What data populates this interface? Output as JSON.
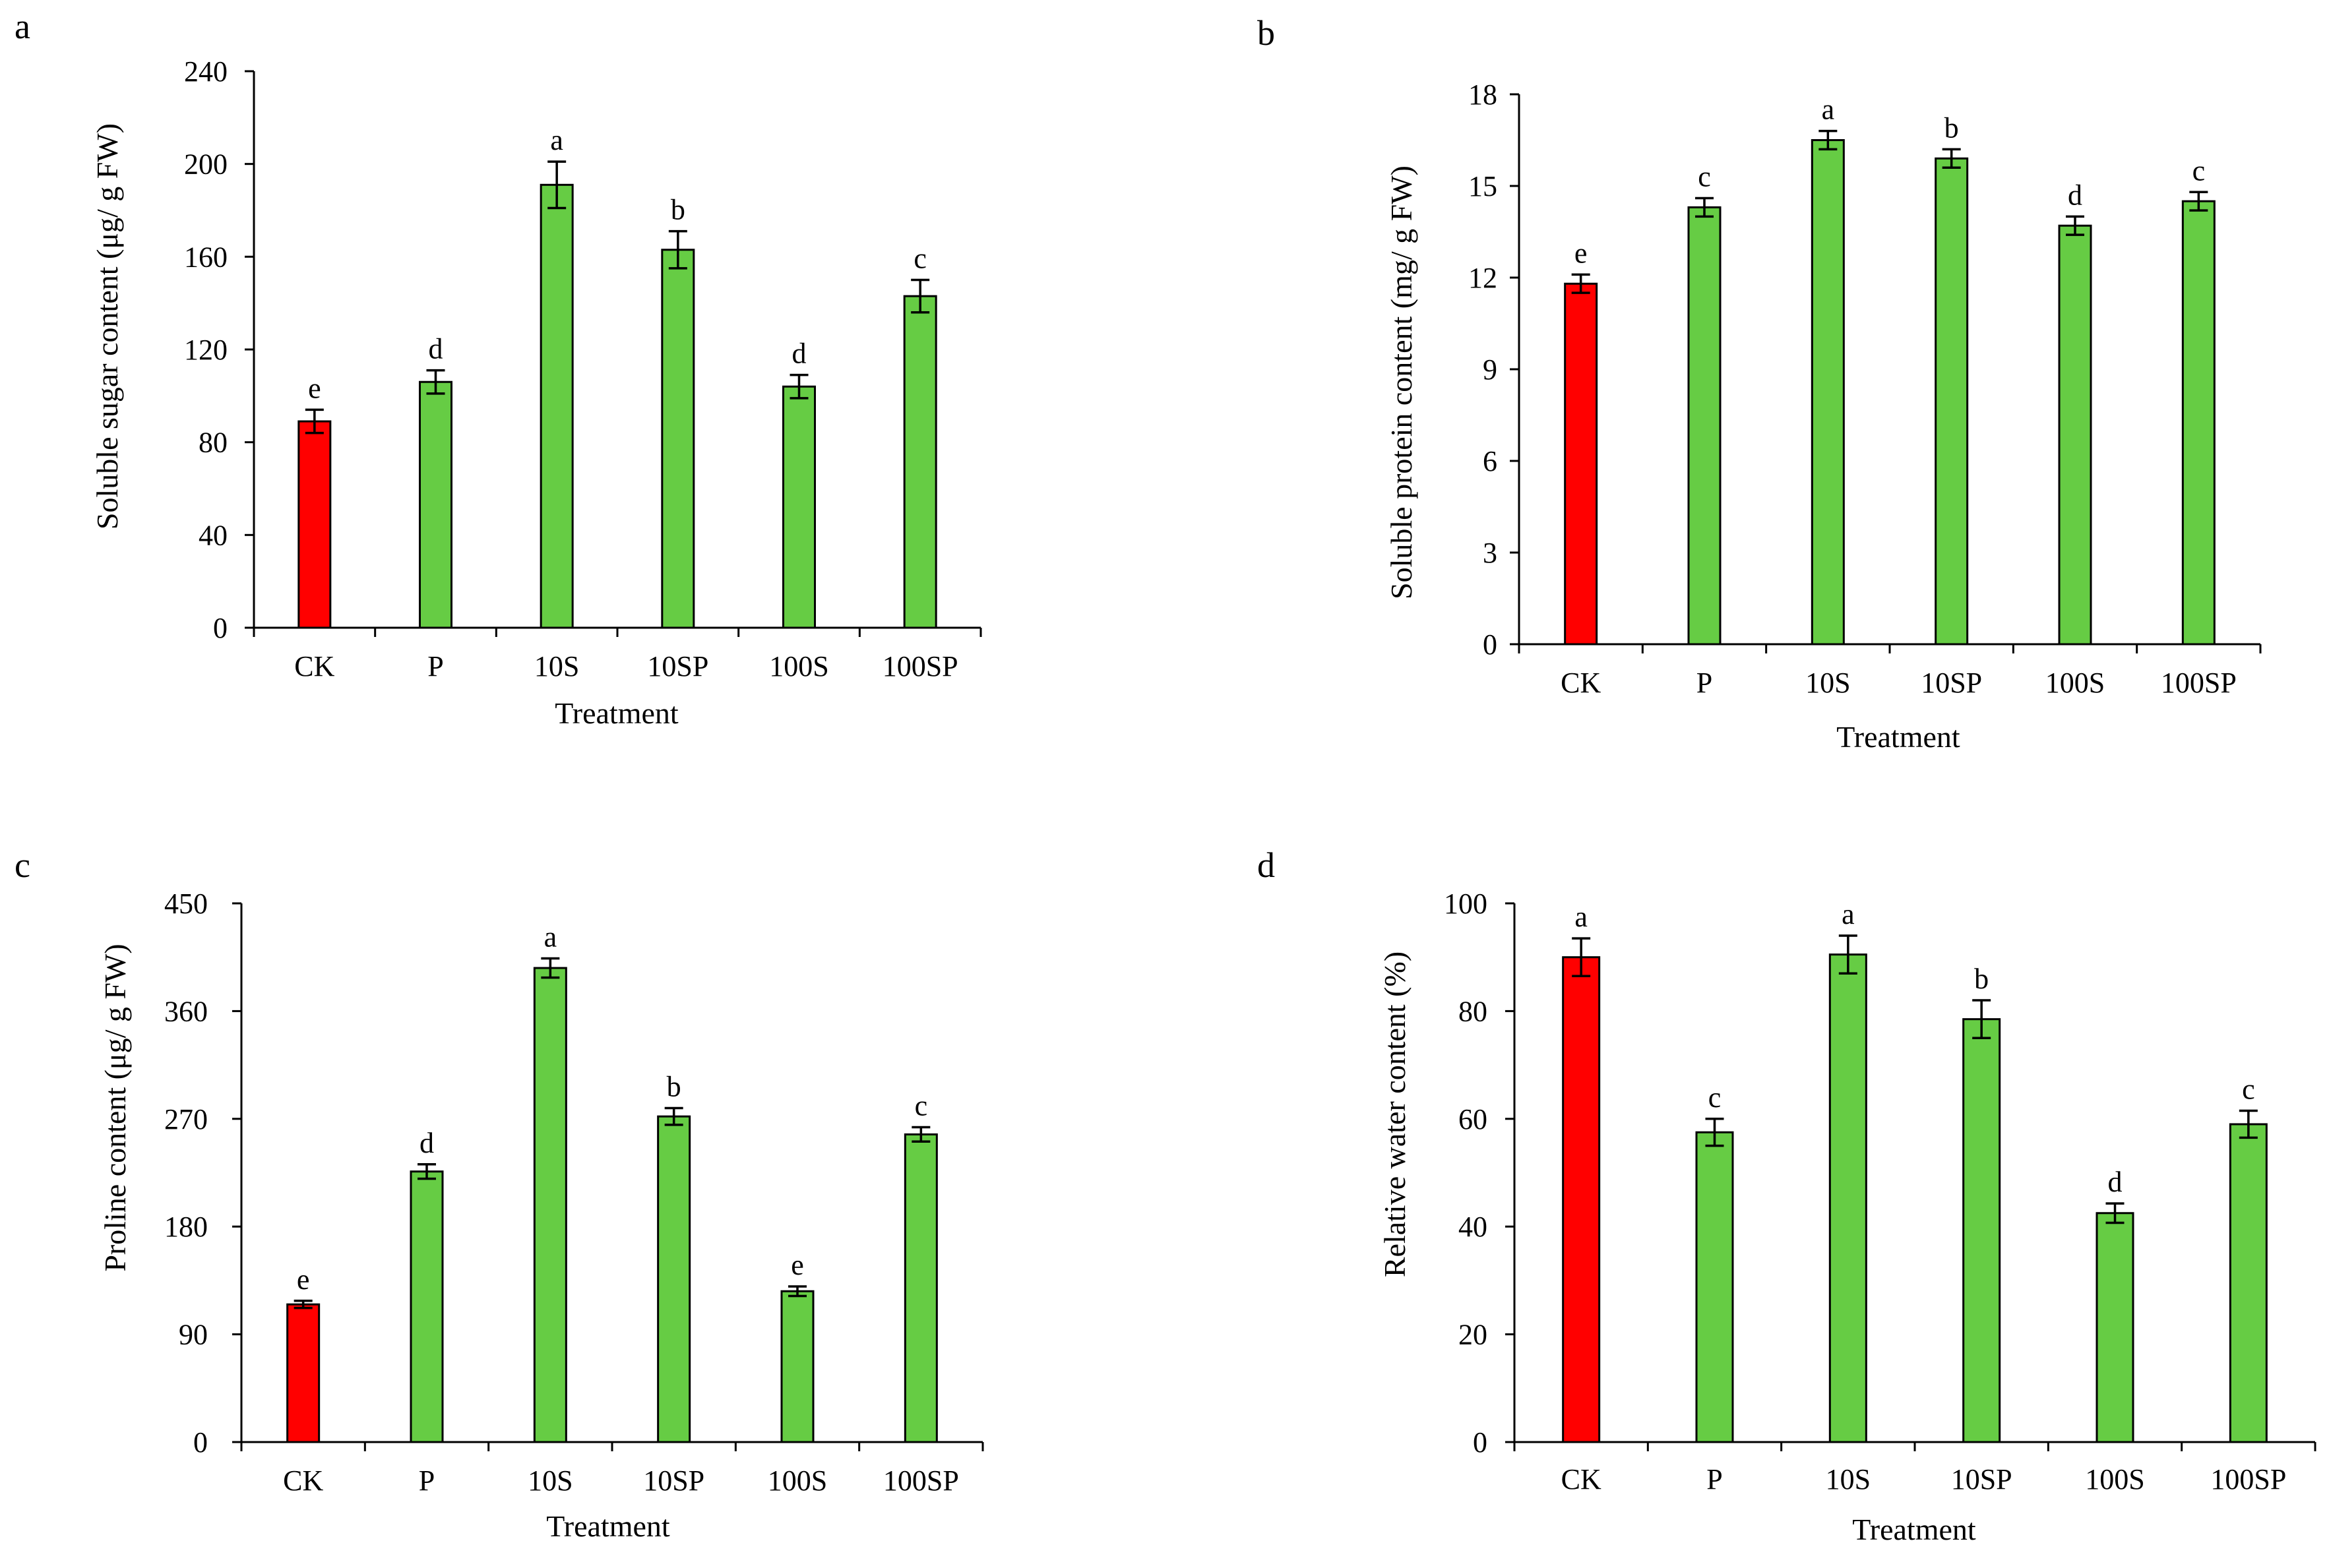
{
  "chart_data": [
    {
      "type": "bar",
      "panel": "a",
      "xlabel": "Treatment",
      "ylabel": "Soluble sugar content (μg/ g FW)",
      "ylim": [
        0,
        240
      ],
      "yticks": [
        0,
        40,
        80,
        120,
        160,
        200,
        240
      ],
      "categories": [
        "CK",
        "P",
        "10S",
        "10SP",
        "100S",
        "100SP"
      ],
      "values": [
        89,
        106,
        191,
        163,
        104,
        143
      ],
      "errors": [
        5,
        5,
        10,
        8,
        5,
        7
      ],
      "significance": [
        "e",
        "d",
        "a",
        "b",
        "d",
        "c"
      ],
      "colors": [
        "#ff0000",
        "#66cc44",
        "#66cc44",
        "#66cc44",
        "#66cc44",
        "#66cc44"
      ]
    },
    {
      "type": "bar",
      "panel": "b",
      "xlabel": "Treatment",
      "ylabel": "Soluble protein content (mg/ g FW)",
      "ylim": [
        0,
        18
      ],
      "yticks": [
        0,
        3,
        6,
        9,
        12,
        15,
        18
      ],
      "categories": [
        "CK",
        "P",
        "10S",
        "10SP",
        "100S",
        "100SP"
      ],
      "values": [
        11.8,
        14.3,
        16.5,
        15.9,
        13.7,
        14.5
      ],
      "errors": [
        0.3,
        0.3,
        0.3,
        0.3,
        0.3,
        0.3
      ],
      "significance": [
        "e",
        "c",
        "a",
        "b",
        "d",
        "c"
      ],
      "colors": [
        "#ff0000",
        "#66cc44",
        "#66cc44",
        "#66cc44",
        "#66cc44",
        "#66cc44"
      ]
    },
    {
      "type": "bar",
      "panel": "c",
      "xlabel": "Treatment",
      "ylabel": "Proline content (μg/ g FW)",
      "ylim": [
        0,
        450
      ],
      "yticks": [
        0,
        90,
        180,
        270,
        360,
        450
      ],
      "categories": [
        "CK",
        "P",
        "10S",
        "10SP",
        "100S",
        "100SP"
      ],
      "values": [
        115,
        226,
        396,
        272,
        126,
        257
      ],
      "errors": [
        3,
        6,
        8,
        7,
        4,
        6
      ],
      "significance": [
        "e",
        "d",
        "a",
        "b",
        "e",
        "c"
      ],
      "colors": [
        "#ff0000",
        "#66cc44",
        "#66cc44",
        "#66cc44",
        "#66cc44",
        "#66cc44"
      ]
    },
    {
      "type": "bar",
      "panel": "d",
      "xlabel": "Treatment",
      "ylabel": "Relative water content (%)",
      "ylim": [
        0,
        100
      ],
      "yticks": [
        0,
        20,
        40,
        60,
        80,
        100
      ],
      "categories": [
        "CK",
        "P",
        "10S",
        "10SP",
        "100S",
        "100SP"
      ],
      "values": [
        90,
        57.5,
        90.5,
        78.5,
        42.5,
        59
      ],
      "errors": [
        3.5,
        2.5,
        3.5,
        3.5,
        1.8,
        2.5
      ],
      "significance": [
        "a",
        "c",
        "a",
        "b",
        "d",
        "c"
      ],
      "colors": [
        "#ff0000",
        "#66cc44",
        "#66cc44",
        "#66cc44",
        "#66cc44",
        "#66cc44"
      ]
    }
  ]
}
